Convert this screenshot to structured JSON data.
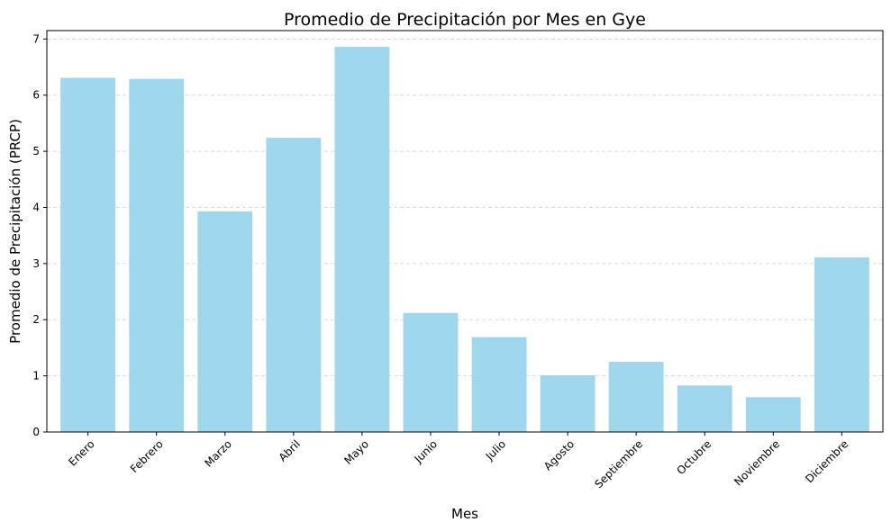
{
  "chart_data": {
    "type": "bar",
    "title": "Promedio de Precipitación por Mes en Gye",
    "xlabel": "Mes",
    "ylabel": "Promedio de Precipitación (PRCP)",
    "categories": [
      "Enero",
      "Febrero",
      "Marzo",
      "Abril",
      "Mayo",
      "Junio",
      "Julio",
      "Agosto",
      "Septiembre",
      "Octubre",
      "Noviembre",
      "Diciembre"
    ],
    "values": [
      6.31,
      6.29,
      3.93,
      5.24,
      6.86,
      2.12,
      1.69,
      1.01,
      1.25,
      0.83,
      0.62,
      3.11
    ],
    "ylim": [
      0,
      7.15
    ],
    "yticks": [
      0,
      1,
      2,
      3,
      4,
      5,
      6,
      7
    ],
    "grid": "y-dashed",
    "bar_color": "#9fd7ed",
    "tick_label_rotation_deg": 45
  }
}
